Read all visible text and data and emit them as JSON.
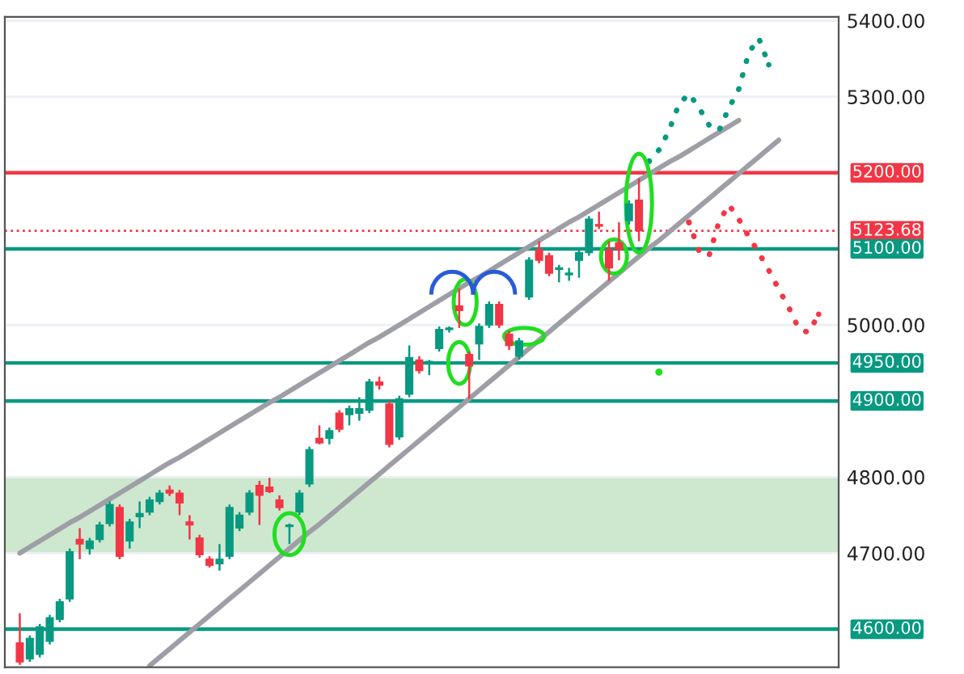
{
  "chart_data": {
    "type": "candlestick",
    "categories": [
      null,
      null,
      null,
      null,
      null,
      null,
      null,
      null,
      null,
      null,
      null,
      null,
      null,
      null,
      null,
      null,
      null,
      null,
      null,
      null,
      null,
      null,
      null,
      null,
      null,
      null,
      null,
      null,
      null,
      null,
      null,
      null,
      null,
      null,
      null,
      null,
      null,
      null,
      null,
      null,
      null,
      null,
      null,
      null,
      null,
      null,
      null,
      null,
      null,
      null,
      null,
      null,
      null,
      null,
      null,
      null,
      null,
      null,
      null,
      null,
      null,
      null,
      null,
      null,
      null,
      null,
      null,
      null,
      null,
      null,
      null,
      null,
      null,
      null,
      null,
      null,
      null,
      null,
      null,
      null,
      null,
      null
    ],
    "ohlc": [
      [
        4582,
        4621,
        4553,
        4557
      ],
      [
        4561,
        4592,
        4557,
        4588
      ],
      [
        4567,
        4607,
        4563,
        4603
      ],
      [
        4584,
        4619,
        4580,
        4615
      ],
      [
        4613,
        4640,
        4609,
        4636
      ],
      [
        4640,
        4706,
        4636,
        4702
      ],
      [
        4718,
        4733,
        4692,
        4712
      ],
      [
        4706,
        4720,
        4698,
        4716
      ],
      [
        4718,
        4741,
        4714,
        4737
      ],
      [
        4739,
        4768,
        4735,
        4764
      ],
      [
        4760,
        4764,
        4692,
        4696
      ],
      [
        4716,
        4745,
        4706,
        4741
      ],
      [
        4748,
        4768,
        4733,
        4752
      ],
      [
        4754,
        4774,
        4750,
        4770
      ],
      [
        4768,
        4783,
        4764,
        4779
      ],
      [
        4783,
        4789,
        4775,
        4779
      ],
      [
        4779,
        4783,
        4750,
        4766
      ],
      [
        4741,
        4750,
        4718,
        4737
      ],
      [
        4720,
        4724,
        4694,
        4698
      ],
      [
        4692,
        4696,
        4681,
        4684
      ],
      [
        4686,
        4712,
        4677,
        4692
      ],
      [
        4696,
        4764,
        4692,
        4760
      ],
      [
        4733,
        4754,
        4729,
        4750
      ],
      [
        4754,
        4783,
        4750,
        4779
      ],
      [
        4789,
        4795,
        4737,
        4776
      ],
      [
        4787,
        4799,
        4779,
        4781
      ],
      [
        4770,
        4776,
        4756,
        4760
      ],
      [
        4735,
        4739,
        4712,
        4737
      ],
      [
        4754,
        4783,
        4750,
        4779
      ],
      [
        4791,
        4840,
        4787,
        4836
      ],
      [
        4851,
        4868,
        4843,
        4845
      ],
      [
        4851,
        4865,
        4843,
        4861
      ],
      [
        4884,
        4888,
        4859,
        4863
      ],
      [
        4882,
        4894,
        4868,
        4890
      ],
      [
        4884,
        4905,
        4874,
        4890
      ],
      [
        4888,
        4929,
        4884,
        4925
      ],
      [
        4925,
        4932,
        4915,
        4921
      ],
      [
        4896,
        4900,
        4839,
        4843
      ],
      [
        4853,
        4907,
        4849,
        4903
      ],
      [
        4909,
        4973,
        4905,
        4957
      ],
      [
        4954,
        4959,
        4936,
        4940
      ],
      [
        4950,
        4954,
        4934,
        4952
      ],
      [
        4969,
        4998,
        4965,
        4994
      ],
      [
        4994,
        4998,
        4990,
        4996
      ],
      [
        5025,
        5048,
        4996,
        5019
      ],
      [
        4961,
        4965,
        4903,
        4946
      ],
      [
        4975,
        5002,
        4954,
        4998
      ],
      [
        5000,
        5031,
        4996,
        5027
      ],
      [
        5027,
        5031,
        4996,
        5000
      ],
      [
        4988,
        4992,
        4967,
        4973
      ],
      [
        4959,
        4983,
        4955,
        4979
      ],
      [
        5037,
        5089,
        5033,
        5085
      ],
      [
        5099,
        5110,
        5081,
        5085
      ],
      [
        5091,
        5095,
        5064,
        5068
      ],
      [
        5073,
        5079,
        5056,
        5075
      ],
      [
        5066,
        5075,
        5058,
        5068
      ],
      [
        5085,
        5099,
        5062,
        5095
      ],
      [
        5095,
        5143,
        5091,
        5139
      ],
      [
        5132,
        5149,
        5126,
        5130
      ],
      [
        5099,
        5110,
        5058,
        5075
      ],
      [
        5108,
        5135,
        5085,
        5099
      ],
      [
        5137,
        5164,
        5132,
        5159
      ],
      [
        5164,
        5193,
        5110,
        5124
      ],
      null,
      null,
      null,
      null,
      null,
      null,
      null,
      null,
      null,
      null,
      null,
      null,
      null,
      null,
      null,
      null,
      null,
      null,
      null
    ],
    "colors": [
      "#f23645",
      "#089981",
      "#089981",
      "#089981",
      "#089981",
      "#089981",
      "#f23645",
      "#089981",
      "#089981",
      "#089981",
      "#f23645",
      "#089981",
      "#089981",
      "#089981",
      "#089981",
      "#f23645",
      "#f23645",
      "#f23645",
      "#f23645",
      "#f23645",
      "#089981",
      "#089981",
      "#089981",
      "#089981",
      "#f23645",
      "#f23645",
      "#f23645",
      "#089981",
      "#089981",
      "#089981",
      "#f23645",
      "#089981",
      "#f23645",
      "#089981",
      "#089981",
      "#089981",
      "#f23645",
      "#f23645",
      "#089981",
      "#089981",
      "#f23645",
      "#089981",
      "#089981",
      "#089981",
      "#f23645",
      "#f23645",
      "#089981",
      "#089981",
      "#f23645",
      "#f23645",
      "#089981",
      "#089981",
      "#f23645",
      "#f23645",
      "#089981",
      "#089981",
      "#089981",
      "#089981",
      "#f23645",
      "#f23645",
      "#f23645",
      "#089981",
      "#f23645",
      null,
      null,
      null,
      null,
      null,
      null,
      null,
      null,
      null,
      null,
      null,
      null,
      null,
      null,
      null,
      null,
      null,
      null,
      null
    ],
    "series": [
      {
        "type": "line",
        "color": "#9e9ea6",
        "line_style": "solid",
        "values": [
          4700,
          4708,
          4716,
          4724,
          4732,
          4740,
          4747,
          4755,
          4763,
          4771,
          4779,
          4787,
          4795,
          4803,
          4811,
          4819,
          4826,
          4834,
          4842,
          4850,
          4858,
          4866,
          4874,
          4882,
          4890,
          4898,
          4905,
          4913,
          4921,
          4929,
          4937,
          4945,
          4953,
          4961,
          4969,
          4977,
          4984,
          4992,
          5000,
          5008,
          5016,
          5024,
          5032,
          5040,
          5048,
          5056,
          5063,
          5071,
          5079,
          5087,
          5095,
          5103,
          5111,
          5119,
          5127,
          5135,
          5142,
          5150,
          5158,
          5166,
          5174,
          5182,
          5190,
          5198,
          5206,
          5214,
          5221,
          5229,
          5237,
          5245,
          5253,
          5261,
          5269,
          null,
          null,
          null,
          null,
          null,
          null,
          null,
          null,
          null
        ]
      },
      {
        "type": "line",
        "color": "#9e9ea6",
        "line_style": "solid",
        "values": [
          null,
          null,
          null,
          null,
          null,
          null,
          null,
          null,
          null,
          null,
          null,
          null,
          null,
          4552,
          4563,
          4574,
          4585,
          4596,
          4607,
          4618,
          4629,
          4640,
          4651,
          4662,
          4673,
          4684,
          4695,
          4706,
          4717,
          4728,
          4738,
          4749,
          4760,
          4771,
          4782,
          4793,
          4804,
          4815,
          4826,
          4837,
          4848,
          4859,
          4870,
          4881,
          4892,
          4903,
          4914,
          4925,
          4936,
          4947,
          4958,
          4969,
          4980,
          4991,
          5002,
          5013,
          5024,
          5035,
          5046,
          5057,
          5068,
          5079,
          5090,
          5101,
          5111,
          5122,
          5133,
          5144,
          5155,
          5166,
          5177,
          5188,
          5199,
          5210,
          5221,
          5232,
          5243,
          null,
          null,
          null,
          null,
          null
        ]
      },
      {
        "type": "line",
        "color": "#089981",
        "line_style": "dotted",
        "values": [
          null,
          null,
          null,
          null,
          null,
          null,
          null,
          null,
          null,
          null,
          null,
          null,
          null,
          null,
          null,
          null,
          null,
          null,
          null,
          null,
          null,
          null,
          null,
          null,
          null,
          null,
          null,
          null,
          null,
          null,
          null,
          null,
          null,
          null,
          null,
          null,
          null,
          null,
          null,
          null,
          null,
          null,
          null,
          null,
          null,
          null,
          null,
          null,
          null,
          null,
          null,
          null,
          null,
          null,
          null,
          null,
          null,
          null,
          null,
          null,
          null,
          null,
          null,
          5215,
          5230,
          5255,
          5290,
          5304,
          5286,
          5263,
          5255,
          5285,
          5310,
          5358,
          5377,
          5342,
          null,
          null,
          null,
          null,
          null,
          null
        ]
      },
      {
        "type": "line",
        "color": "#f23645",
        "line_style": "dotted",
        "values": [
          null,
          null,
          null,
          null,
          null,
          null,
          null,
          null,
          null,
          null,
          null,
          null,
          null,
          null,
          null,
          null,
          null,
          null,
          null,
          null,
          null,
          null,
          null,
          null,
          null,
          null,
          null,
          null,
          null,
          null,
          null,
          null,
          null,
          null,
          null,
          null,
          null,
          null,
          null,
          null,
          null,
          null,
          null,
          null,
          null,
          null,
          null,
          null,
          null,
          null,
          null,
          null,
          null,
          null,
          null,
          null,
          null,
          null,
          null,
          null,
          null,
          null,
          null,
          null,
          null,
          null,
          null,
          5135,
          5098,
          5090,
          5135,
          5158,
          5139,
          5116,
          5095,
          5072,
          5047,
          5023,
          4995,
          4990,
          5014,
          null
        ]
      },
      {
        "type": "scatter",
        "color": "#22dd22",
        "marker": "circle",
        "values": [
          null,
          null,
          null,
          null,
          null,
          null,
          null,
          null,
          null,
          null,
          null,
          null,
          null,
          null,
          null,
          null,
          null,
          null,
          null,
          null,
          null,
          null,
          null,
          null,
          null,
          null,
          null,
          null,
          null,
          null,
          null,
          null,
          null,
          null,
          null,
          null,
          null,
          null,
          null,
          null,
          null,
          null,
          null,
          null,
          null,
          null,
          null,
          null,
          null,
          null,
          null,
          null,
          null,
          null,
          null,
          null,
          null,
          null,
          null,
          null,
          null,
          null,
          null,
          null,
          4938,
          null,
          null,
          null,
          null,
          null,
          null,
          null,
          null,
          null,
          null,
          null,
          null,
          null,
          null,
          null,
          null,
          null
        ]
      }
    ],
    "ylim": [
      4550,
      5405
    ],
    "yticks": [
      {
        "value": 4700,
        "label": "4700.00"
      },
      {
        "value": 4800,
        "label": "4800.00"
      },
      {
        "value": 5000,
        "label": "5000.00"
      },
      {
        "value": 5300,
        "label": "5300.00"
      },
      {
        "value": 5400,
        "label": "5400.00"
      }
    ],
    "ref_lines": [
      {
        "axis": "y",
        "value": 5200,
        "label": "5200.00",
        "color": "#f23645",
        "line_style": "solid"
      },
      {
        "axis": "y",
        "value": 5123.68,
        "label": "5123.68",
        "color": "#f23645",
        "line_style": "dotted"
      },
      {
        "axis": "y",
        "value": 5100,
        "label": "5100.00",
        "color": "#089981",
        "line_style": "solid"
      },
      {
        "axis": "y",
        "value": 4950,
        "label": "4950.00",
        "color": "#089981",
        "line_style": "solid"
      },
      {
        "axis": "y",
        "value": 4900,
        "label": "4900.00",
        "color": "#089981",
        "line_style": "solid"
      },
      {
        "axis": "y",
        "value": 4600,
        "label": "4600.00",
        "color": "#089981",
        "line_style": "solid"
      }
    ],
    "bands": [
      {
        "axis": "y",
        "from": 4700,
        "to": 4800,
        "color": "#c8e6c9"
      }
    ],
    "grid": "y",
    "tick_labels": "y"
  }
}
